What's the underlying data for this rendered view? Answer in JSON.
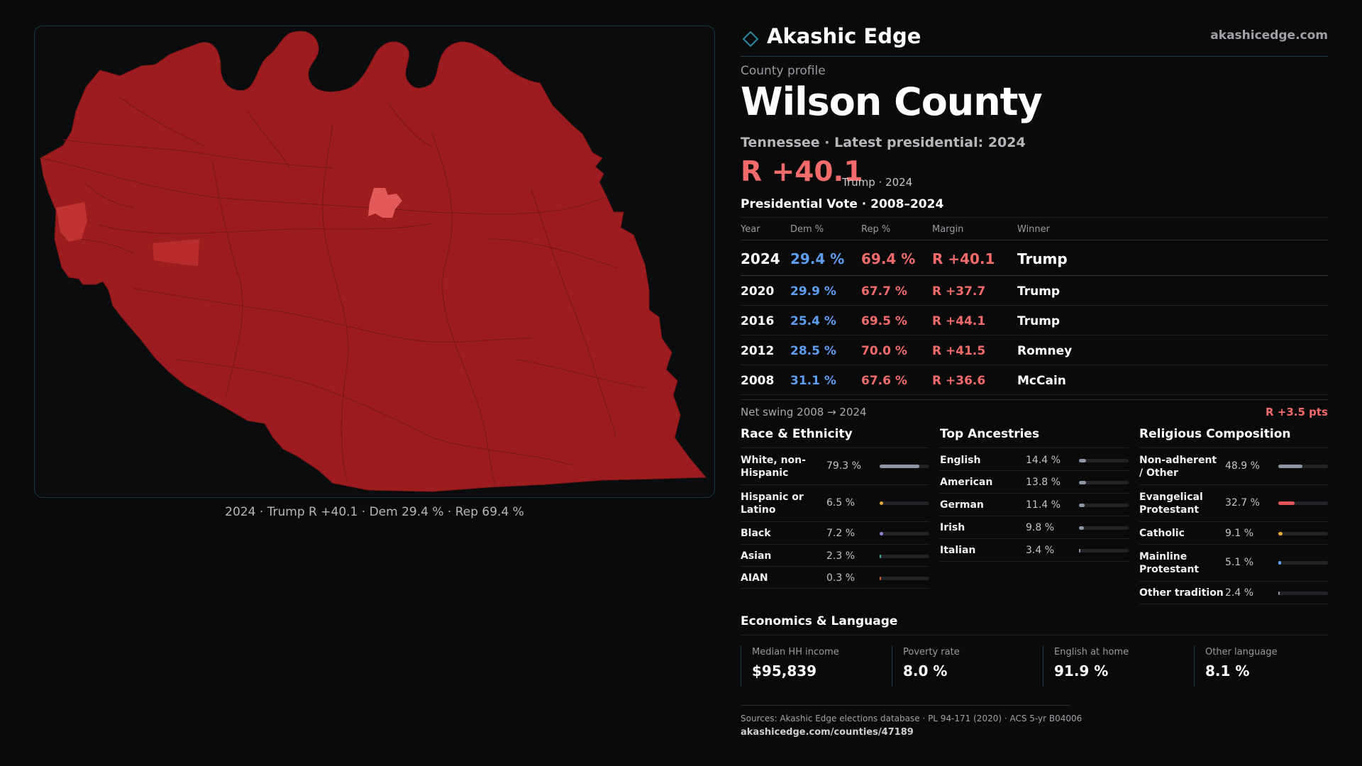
{
  "map": {
    "caption": "2024 · Trump R +40.1 · Dem 29.4 % · Rep 69.4 %",
    "fill_colors": {
      "county": "#9c1c1f",
      "light_precinct": "#e25a5a",
      "mid_precinct": "#c13232",
      "boundary": "#7a1618"
    }
  },
  "header": {
    "brand": "Akashic Edge",
    "site": "akashicedge.com"
  },
  "profile": {
    "kicker": "County profile",
    "title": "Wilson County",
    "subtitle": "Tennessee · Latest presidential: 2024",
    "margin": "R +40.1",
    "margin_note": "Trump · 2024"
  },
  "vote": {
    "title": "Presidential Vote · 2008–2024",
    "headers": {
      "year": "Year",
      "dem": "Dem %",
      "rep": "Rep %",
      "margin": "Margin",
      "winner": "Winner"
    },
    "rows": [
      {
        "year": "2024",
        "dem": "29.4 %",
        "rep": "69.4 %",
        "margin": "R +40.1",
        "winner": "Trump"
      },
      {
        "year": "2020",
        "dem": "29.9 %",
        "rep": "67.7 %",
        "margin": "R +37.7",
        "winner": "Trump"
      },
      {
        "year": "2016",
        "dem": "25.4 %",
        "rep": "69.5 %",
        "margin": "R +44.1",
        "winner": "Trump"
      },
      {
        "year": "2012",
        "dem": "28.5 %",
        "rep": "70.0 %",
        "margin": "R +41.5",
        "winner": "Romney"
      },
      {
        "year": "2008",
        "dem": "31.1 %",
        "rep": "67.6 %",
        "margin": "R +36.6",
        "winner": "McCain"
      }
    ],
    "swing_label": "Net swing 2008 → 2024",
    "swing_value": "R +3.5 pts"
  },
  "race": {
    "title": "Race & Ethnicity",
    "items": [
      {
        "label": "White, non-Hispanic",
        "pct": "79.3 %",
        "value": 79.3,
        "color": "#8d96a6"
      },
      {
        "label": "Hispanic or Latino",
        "pct": "6.5 %",
        "value": 6.5,
        "color": "#e0a83a"
      },
      {
        "label": "Black",
        "pct": "7.2 %",
        "value": 7.2,
        "color": "#8d84d6"
      },
      {
        "label": "Asian",
        "pct": "2.3 %",
        "value": 2.3,
        "color": "#3fb39a"
      },
      {
        "label": "AIAN",
        "pct": "0.3 %",
        "value": 0.3,
        "color": "#d0603a"
      }
    ]
  },
  "ancestry": {
    "title": "Top Ancestries",
    "items": [
      {
        "label": "English",
        "pct": "14.4 %",
        "value": 14.4,
        "color": "#8d96a6"
      },
      {
        "label": "American",
        "pct": "13.8 %",
        "value": 13.8,
        "color": "#8d96a6"
      },
      {
        "label": "German",
        "pct": "11.4 %",
        "value": 11.4,
        "color": "#8d96a6"
      },
      {
        "label": "Irish",
        "pct": "9.8 %",
        "value": 9.8,
        "color": "#8d96a6"
      },
      {
        "label": "Italian",
        "pct": "3.4 %",
        "value": 3.4,
        "color": "#8d96a6"
      }
    ]
  },
  "religion": {
    "title": "Religious Composition",
    "items": [
      {
        "label": "Non-adherent / Other",
        "pct": "48.9 %",
        "value": 48.9,
        "color": "#8d96a6"
      },
      {
        "label": "Evangelical Protestant",
        "pct": "32.7 %",
        "value": 32.7,
        "color": "#e0545a"
      },
      {
        "label": "Catholic",
        "pct": "9.1 %",
        "value": 9.1,
        "color": "#e0a83a"
      },
      {
        "label": "Mainline Protestant",
        "pct": "5.1 %",
        "value": 5.1,
        "color": "#5f9df0"
      },
      {
        "label": "Other tradition",
        "pct": "2.4 %",
        "value": 2.4,
        "color": "#8d96a6"
      }
    ]
  },
  "economics": {
    "title": "Economics & Language",
    "items": [
      {
        "label": "Median HH income",
        "value": "$95,839"
      },
      {
        "label": "Poverty rate",
        "value": "8.0 %"
      },
      {
        "label": "English at home",
        "value": "91.9 %"
      },
      {
        "label": "Other language",
        "value": "8.1 %"
      }
    ]
  },
  "footer": {
    "sources": "Sources: Akashic Edge elections database · PL 94-171 (2020) · ACS 5-yr B04006",
    "url": "akashicedge.com/counties/47189"
  }
}
